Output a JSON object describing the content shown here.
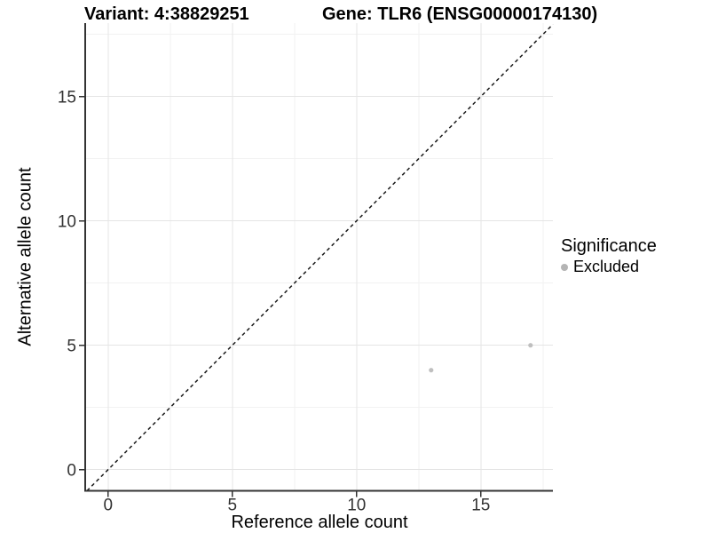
{
  "chart_data": {
    "type": "scatter",
    "title_left": "Variant: 4:38829251",
    "title_right": "Gene: TLR6 (ENSG00000174130)",
    "xlabel": "Reference allele count",
    "ylabel": "Alternative allele count",
    "xlim": [
      -0.92,
      17.9
    ],
    "ylim": [
      -0.85,
      17.95
    ],
    "x_ticks": [
      0,
      5,
      10,
      15
    ],
    "y_ticks": [
      0,
      5,
      10,
      15
    ],
    "x_minor_ticks": [
      2.5,
      7.5,
      12.5,
      17.5
    ],
    "y_minor_ticks": [
      2.5,
      7.5,
      12.5,
      17.5
    ],
    "grid": "major-and-minor",
    "reference_line": {
      "type": "identity",
      "equation": "y = x",
      "style": "dashed",
      "color": "#1a1a1a"
    },
    "series": [
      {
        "name": "Excluded",
        "color": "#bfbfbf",
        "points": [
          {
            "x": 13,
            "y": 4
          },
          {
            "x": 17,
            "y": 5
          }
        ]
      }
    ],
    "legend": {
      "title": "Significance",
      "position": "right",
      "entries": [
        {
          "label": "Excluded",
          "color": "#b4b4b4",
          "marker": "circle"
        }
      ]
    }
  },
  "colors": {
    "background": "#ffffff",
    "axis_line": "#333333",
    "tick_mark": "#333333",
    "tick_label": "#333333",
    "grid_major": "#e5e5e5",
    "grid_minor": "#f2f2f2"
  }
}
